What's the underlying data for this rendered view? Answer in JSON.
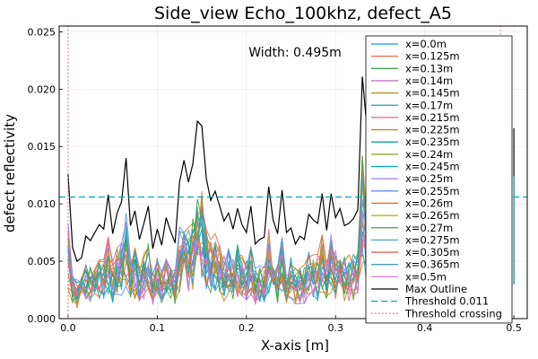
{
  "chart_data": {
    "type": "line",
    "title": "Side_view Echo_100khz, defect_A5",
    "xlabel": "X-axis [m]",
    "ylabel": "defect reflectivity",
    "xlim": [
      -0.01,
      0.515
    ],
    "ylim": [
      0,
      0.0255
    ],
    "xticks": [
      0.0,
      0.1,
      0.2,
      0.3,
      0.4,
      0.5
    ],
    "xtick_labels": [
      "0.0",
      "0.1",
      "0.2",
      "0.3",
      "0.4",
      "0.5"
    ],
    "yticks": [
      0,
      0.005,
      0.01,
      0.015,
      0.02,
      0.025
    ],
    "ytick_labels": [
      "0.000",
      "0.005",
      "0.010",
      "0.015",
      "0.020",
      "0.025"
    ],
    "grid": true,
    "legend_position": "top-right",
    "annotation": "Width: 0.495m",
    "series_names": [
      "x=0.0m",
      "x=0.125m",
      "x=0.13m",
      "x=0.14m",
      "x=0.145m",
      "x=0.17m",
      "x=0.215m",
      "x=0.225m",
      "x=0.235m",
      "x=0.24m",
      "x=0.245m",
      "x=0.25m",
      "x=0.255m",
      "x=0.26m",
      "x=0.265m",
      "x=0.27m",
      "x=0.275m",
      "x=0.305m",
      "x=0.365m",
      "x=0.5m"
    ],
    "series_colors": [
      "#009AFA",
      "#E36F47",
      "#3EA44E",
      "#C371D2",
      "#AC8E18",
      "#00AAAE",
      "#ED5E93",
      "#C68225",
      "#00A98D",
      "#8E971E",
      "#00A9CD",
      "#9B7FE9",
      "#618DF6",
      "#F16C0E",
      "#B3A21E",
      "#3CA33C",
      "#4DA2CC",
      "#E06858",
      "#4B9BC4",
      "#E173DA"
    ],
    "max_outline": {
      "name": "Max Outline",
      "color": "#000000",
      "x": [
        0.0,
        0.005,
        0.01,
        0.015,
        0.02,
        0.025,
        0.03,
        0.035,
        0.04,
        0.045,
        0.05,
        0.055,
        0.06,
        0.065,
        0.07,
        0.075,
        0.08,
        0.085,
        0.09,
        0.095,
        0.1,
        0.105,
        0.11,
        0.115,
        0.12,
        0.125,
        0.13,
        0.135,
        0.14,
        0.145,
        0.15,
        0.155,
        0.16,
        0.165,
        0.17,
        0.175,
        0.18,
        0.185,
        0.19,
        0.195,
        0.2,
        0.205,
        0.21,
        0.215,
        0.22,
        0.225,
        0.23,
        0.235,
        0.24,
        0.245,
        0.25,
        0.255,
        0.26,
        0.265,
        0.27,
        0.275,
        0.28,
        0.285,
        0.29,
        0.295,
        0.3,
        0.305,
        0.31,
        0.315,
        0.32,
        0.325,
        0.33,
        0.335
      ],
      "y": [
        0.0126,
        0.0062,
        0.005,
        0.0053,
        0.0072,
        0.0068,
        0.0075,
        0.0082,
        0.0078,
        0.0108,
        0.0074,
        0.0092,
        0.0102,
        0.014,
        0.0081,
        0.0094,
        0.0069,
        0.0083,
        0.0098,
        0.0061,
        0.0078,
        0.0064,
        0.0088,
        0.0076,
        0.0066,
        0.0119,
        0.0138,
        0.0119,
        0.0135,
        0.0172,
        0.0168,
        0.0122,
        0.0103,
        0.0111,
        0.0098,
        0.0085,
        0.0092,
        0.0078,
        0.0096,
        0.0082,
        0.0075,
        0.0098,
        0.0065,
        0.0069,
        0.0071,
        0.0115,
        0.0086,
        0.0074,
        0.0112,
        0.0075,
        0.0079,
        0.0065,
        0.0072,
        0.0069,
        0.0091,
        0.0086,
        0.0083,
        0.0109,
        0.0077,
        0.0109,
        0.0088,
        0.0096,
        0.0081,
        0.0083,
        0.0087,
        0.0095,
        0.0211,
        0.0168
      ]
    },
    "right_edge_points": [
      {
        "x": 0.5,
        "y": 0.0166
      },
      {
        "x": 0.5,
        "y": 0.0124
      }
    ],
    "threshold": {
      "name": "Threshold 0.011",
      "value": 0.0106,
      "color": "#00A9AE"
    },
    "threshold_crossing": {
      "name": "Threshold crossing",
      "x": [
        0.0,
        0.485
      ],
      "color": "#E07394"
    }
  }
}
